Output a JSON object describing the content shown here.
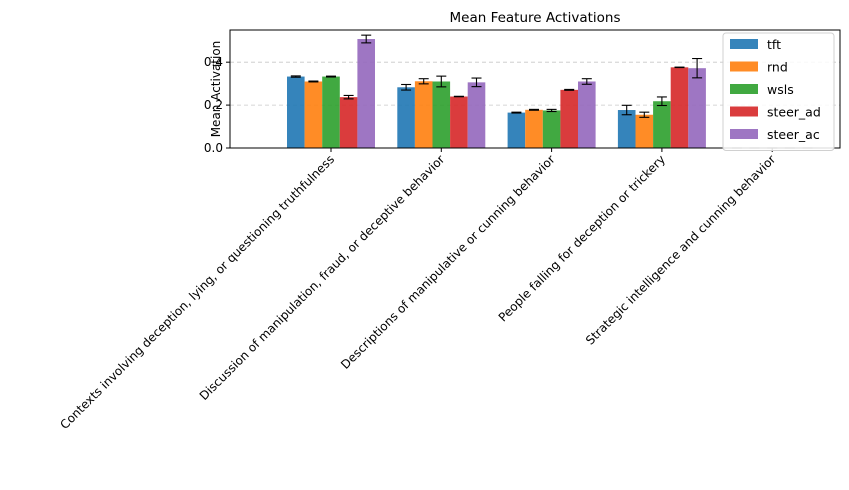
{
  "chart_data": {
    "type": "bar",
    "title": "Mean Feature Activations",
    "xlabel": "",
    "ylabel": "Mean Activation",
    "ylim": [
      0,
      0.55
    ],
    "yticks": [
      "0.0",
      "0.2",
      "0.4"
    ],
    "grid": "y-dashed",
    "legend_position": "top-right",
    "categories": [
      "Contexts involving deception, lying, or questioning truthfulness",
      "Discussion of manipulation, fraud, or deceptive behavior",
      "Descriptions of manipulative or cunning behavior",
      "People falling for deception or trickery",
      "Strategic intelligence and cunning behavior"
    ],
    "series": [
      {
        "name": "tft",
        "color": "#1f77b4",
        "values": [
          0.333,
          0.283,
          0.165,
          0.177,
          0.0
        ],
        "errors": [
          0.003,
          0.013,
          0.002,
          0.022,
          0.0
        ]
      },
      {
        "name": "rnd",
        "color": "#ff7f0e",
        "values": [
          0.31,
          0.311,
          0.178,
          0.155,
          0.0
        ],
        "errors": [
          0.002,
          0.012,
          0.002,
          0.012,
          0.0
        ]
      },
      {
        "name": "wsls",
        "color": "#2ca02c",
        "values": [
          0.333,
          0.31,
          0.175,
          0.218,
          0.0
        ],
        "errors": [
          0.002,
          0.025,
          0.005,
          0.02,
          0.0
        ]
      },
      {
        "name": "steer_ad",
        "color": "#d62728",
        "values": [
          0.237,
          0.24,
          0.271,
          0.376,
          0.0
        ],
        "errors": [
          0.008,
          0.001,
          0.002,
          0.001,
          0.0
        ]
      },
      {
        "name": "steer_ac",
        "color": "#9467bd",
        "values": [
          0.508,
          0.306,
          0.31,
          0.372,
          0.0
        ],
        "errors": [
          0.018,
          0.02,
          0.013,
          0.045,
          0.0
        ]
      }
    ]
  }
}
